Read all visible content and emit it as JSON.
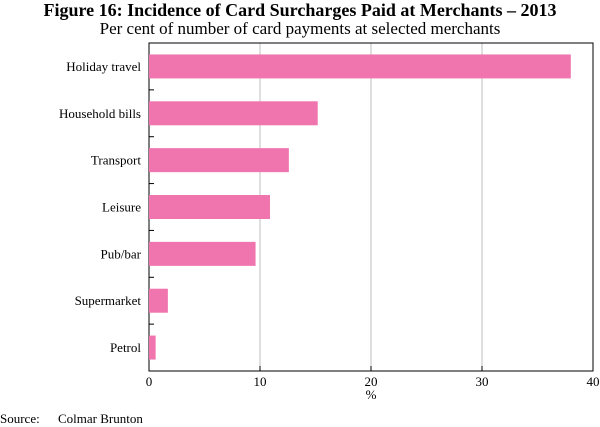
{
  "title": "Figure 16: Incidence of Card Surcharges Paid at Merchants – 2013",
  "subtitle": "Per cent of number of card payments at selected merchants",
  "source_label": "Source:",
  "source_text": "Colmar Brunton",
  "chart_data": {
    "type": "bar",
    "orientation": "horizontal",
    "categories": [
      "Holiday travel",
      "Household bills",
      "Transport",
      "Leisure",
      "Pub/bar",
      "Supermarket",
      "Petrol"
    ],
    "values": [
      38.0,
      15.2,
      12.6,
      10.9,
      9.6,
      1.7,
      0.6
    ],
    "xlabel": "%",
    "xlim": [
      0,
      40
    ],
    "xticks": [
      0,
      10,
      20,
      30,
      40
    ],
    "grid": true,
    "bar_color": "#F075AE",
    "grid_color": "#bfbfbf"
  }
}
